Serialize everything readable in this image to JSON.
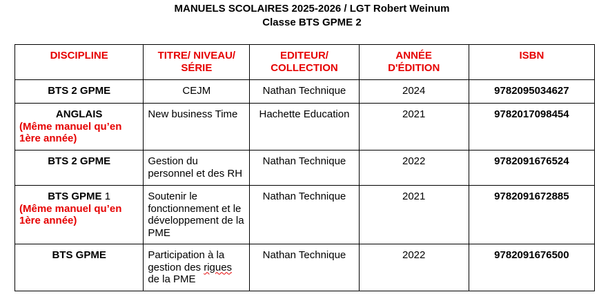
{
  "document": {
    "title_line1": "MANUELS SCOLAIRES 2025-2026 / LGT Robert Weinum",
    "title_line2": "Classe BTS GPME 2"
  },
  "table": {
    "headers": {
      "discipline": "DISCIPLINE",
      "titre_line1": "TITRE/ NIVEAU/",
      "titre_line2": "SÉRIE",
      "editeur_line1": "EDITEUR/",
      "editeur_line2": "COLLECTION",
      "annee_line1": "ANNÉE",
      "annee_line2": "D'ÉDITION",
      "isbn": "ISBN"
    },
    "rows": [
      {
        "discipline": "BTS 2 GPME",
        "note": "",
        "title": "CEJM",
        "editeur": "Nathan Technique",
        "annee": "2024",
        "isbn": "9782095034627"
      },
      {
        "discipline": "ANGLAIS",
        "note": "(Même manuel qu’en 1ère année)",
        "title": "New business Time",
        "editeur": "Hachette Education",
        "annee": "2021",
        "isbn": "9782017098454"
      },
      {
        "discipline": "BTS 2 GPME",
        "note": "",
        "title": "Gestion du personnel et des RH",
        "editeur": "Nathan Technique",
        "annee": "2022",
        "isbn": "9782091676524"
      },
      {
        "discipline_bold": "BTS GPME",
        "discipline_suffix": " 1",
        "note": "(Même manuel qu’en 1ère année)",
        "title": "Soutenir le fonctionnement et le développement de la PME",
        "editeur": "Nathan Technique",
        "annee": "2021",
        "isbn": "9782091672885"
      },
      {
        "discipline": "BTS GPME",
        "note": "",
        "title_before": "Participation à la gestion des ",
        "title_misspelled": "rigues",
        "title_after": " de la PME",
        "editeur": "Nathan Technique",
        "annee": "2022",
        "isbn": "9782091676500"
      }
    ]
  },
  "colors": {
    "header_text": "#e60000",
    "note_text": "#e60000",
    "border": "#000000",
    "spellcheck_underline": "#e60000"
  }
}
